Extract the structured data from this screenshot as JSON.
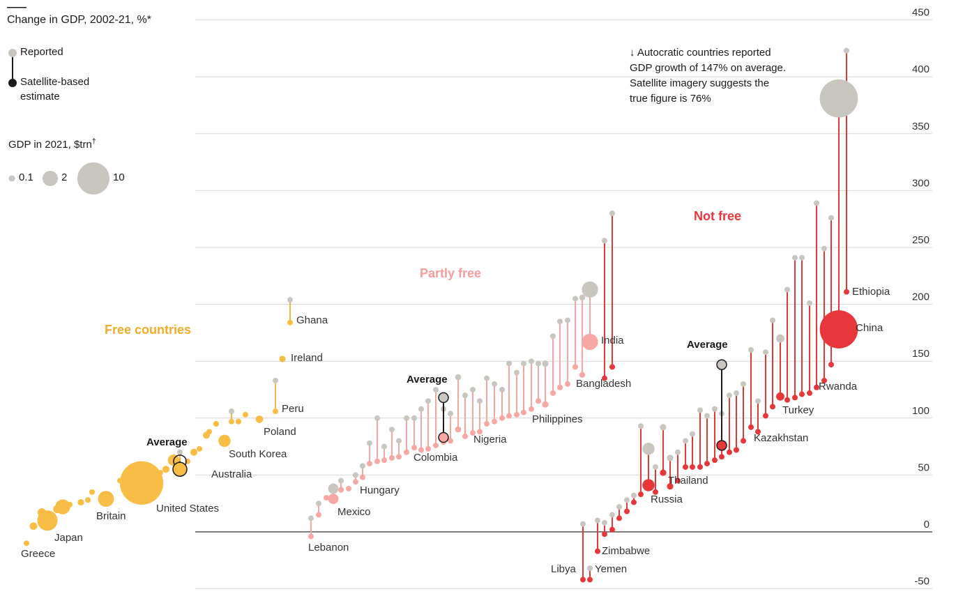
{
  "colors": {
    "free": "#f7bd45",
    "free_line": "#f0b24a",
    "partly": "#f8a8a4",
    "partly_line": "#f3a6a2",
    "notfree": "#e8373a",
    "notfree_line": "#df3a36",
    "reported": "#c9c5bf",
    "estimate_dark": "#1c1c1c",
    "grid": "#d6d6d6",
    "zero": "#555555"
  },
  "chart_data": {
    "type": "scatter",
    "title": "Change in GDP, 2002-21, %*",
    "legend": {
      "reported": "Reported",
      "estimate": "Satellite-based estimate",
      "estimate_line1": "Satellite-based",
      "estimate_line2": "estimate",
      "size_title": "GDP in 2021, $trn",
      "size_title_mark": "†",
      "sizes": [
        "0.1",
        "2",
        "10"
      ]
    },
    "y_axis": {
      "min": -50,
      "max": 450,
      "ticks": [
        "450",
        "400",
        "350",
        "300",
        "250",
        "200",
        "150",
        "100",
        "50",
        "0",
        "-50"
      ]
    },
    "groups": [
      {
        "name": "Free countries",
        "key": "free"
      },
      {
        "name": "Partly free",
        "key": "partly"
      },
      {
        "name": "Not free",
        "key": "notfree"
      }
    ],
    "averages_label": "Average",
    "averages": [
      {
        "group": "free",
        "reported": 62,
        "estimate": 55
      },
      {
        "group": "partly",
        "reported": 118,
        "estimate": 83
      },
      {
        "group": "notfree",
        "reported": 147,
        "estimate": 76
      }
    ],
    "annotation": {
      "lines": [
        "↓ Autocratic countries reported",
        "GDP growth of 147% on average.",
        "Satellite imagery suggests the",
        "true figure is 76%"
      ]
    },
    "labeled_countries": [
      {
        "name": "Greece",
        "group": "free",
        "reported": -10,
        "estimate": -10,
        "gdp": 0.2
      },
      {
        "name": "Japan",
        "group": "free",
        "reported": 10,
        "estimate": 10,
        "gdp": 5
      },
      {
        "name": "Britain",
        "group": "free",
        "reported": 29,
        "estimate": 29,
        "gdp": 3.1
      },
      {
        "name": "United States",
        "group": "free",
        "reported": 43,
        "estimate": 43,
        "gdp": 23
      },
      {
        "name": "Australia",
        "group": "free",
        "reported": 63,
        "estimate": 63,
        "gdp": 1.6
      },
      {
        "name": "South Korea",
        "group": "free",
        "reported": 80,
        "estimate": 80,
        "gdp": 1.8
      },
      {
        "name": "Poland",
        "group": "free",
        "reported": 99,
        "estimate": 99,
        "gdp": 0.68
      },
      {
        "name": "Peru",
        "group": "free",
        "reported": 133,
        "estimate": 106,
        "gdp": 0.22
      },
      {
        "name": "Ireland",
        "group": "free",
        "reported": 152,
        "estimate": 152,
        "gdp": 0.5
      },
      {
        "name": "Ghana",
        "group": "free",
        "reported": 204,
        "estimate": 184,
        "gdp": 0.08
      },
      {
        "name": "Lebanon",
        "group": "partly",
        "reported": 12,
        "estimate": -4,
        "gdp": 0.02
      },
      {
        "name": "Mexico",
        "group": "partly",
        "reported": 38,
        "estimate": 29,
        "gdp": 1.3
      },
      {
        "name": "Hungary",
        "group": "partly",
        "reported": 50,
        "estimate": 44,
        "gdp": 0.18
      },
      {
        "name": "Colombia",
        "group": "partly",
        "reported": 100,
        "estimate": 74,
        "gdp": 0.31
      },
      {
        "name": "Nigeria",
        "group": "partly",
        "reported": 136,
        "estimate": 90,
        "gdp": 0.44
      },
      {
        "name": "Philippines",
        "group": "partly",
        "reported": 148,
        "estimate": 115,
        "gdp": 0.39
      },
      {
        "name": "Bangladesh",
        "group": "partly",
        "reported": 206,
        "estimate": 138,
        "gdp": 0.42
      },
      {
        "name": "India",
        "group": "partly",
        "reported": 213,
        "estimate": 167,
        "gdp": 3.2
      },
      {
        "name": "Libya",
        "group": "notfree",
        "reported": 7,
        "estimate": -42,
        "gdp": 0.04
      },
      {
        "name": "Yemen",
        "group": "notfree",
        "reported": -32,
        "estimate": -42,
        "gdp": 0.02
      },
      {
        "name": "Zimbabwe",
        "group": "notfree",
        "reported": 10,
        "estimate": -17,
        "gdp": 0.02
      },
      {
        "name": "Russia",
        "group": "notfree",
        "reported": 73,
        "estimate": 41,
        "gdp": 1.8
      },
      {
        "name": "Thailand",
        "group": "notfree",
        "reported": 92,
        "estimate": 52,
        "gdp": 0.5
      },
      {
        "name": "Kazakhstan",
        "group": "notfree",
        "reported": 160,
        "estimate": 92,
        "gdp": 0.2
      },
      {
        "name": "Turkey",
        "group": "notfree",
        "reported": 170,
        "estimate": 119,
        "gdp": 0.82
      },
      {
        "name": "Rwanda",
        "group": "notfree",
        "reported": 276,
        "estimate": 147,
        "gdp": 0.01
      },
      {
        "name": "China",
        "group": "notfree",
        "reported": 381,
        "estimate": 178,
        "gdp": 17.7
      },
      {
        "name": "Ethiopia",
        "group": "notfree",
        "reported": 423,
        "estimate": 211,
        "gdp": 0.11
      }
    ],
    "other_countries": {
      "free": [
        {
          "r": 5,
          "e": 5,
          "g": 0.7
        },
        {
          "r": 17,
          "e": 17,
          "g": 0.9
        },
        {
          "r": 20,
          "e": 20,
          "g": 0.8
        },
        {
          "r": 22,
          "e": 22,
          "g": 2.7
        },
        {
          "r": 24,
          "e": 24,
          "g": 0.3
        },
        {
          "r": 26,
          "e": 26,
          "g": 0.5
        },
        {
          "r": 28,
          "e": 28,
          "g": 0.4
        },
        {
          "r": 35,
          "e": 35,
          "g": 0.3
        },
        {
          "r": 45,
          "e": 45,
          "g": 0.1
        },
        {
          "r": 50,
          "e": 50,
          "g": 0.3
        },
        {
          "r": 52,
          "e": 52,
          "g": 0.3
        },
        {
          "r": 55,
          "e": 55,
          "g": 0.6
        },
        {
          "r": 70,
          "e": 58,
          "g": 0.3
        },
        {
          "r": 62,
          "e": 62,
          "g": 0.35
        },
        {
          "r": 70,
          "e": 70,
          "g": 0.6
        },
        {
          "r": 73,
          "e": 73,
          "g": 0.12
        },
        {
          "r": 85,
          "e": 85,
          "g": 0.6
        },
        {
          "r": 95,
          "e": 95,
          "g": 0.4
        },
        {
          "r": 88,
          "e": 88,
          "g": 0.05
        },
        {
          "r": 106,
          "e": 97,
          "g": 0.3
        },
        {
          "r": 97,
          "e": 97,
          "g": 0.4
        },
        {
          "r": 103,
          "e": 103,
          "g": 0.08
        }
      ],
      "partly": [
        {
          "r": 25,
          "e": 15,
          "g": 0.05
        },
        {
          "r": 30,
          "e": 30,
          "g": 0.05
        },
        {
          "r": 38,
          "e": 38,
          "g": 0.08
        },
        {
          "r": 45,
          "e": 37,
          "g": 0.05
        },
        {
          "r": 58,
          "e": 48,
          "g": 0.05
        },
        {
          "r": 78,
          "e": 60,
          "g": 0.05
        },
        {
          "r": 75,
          "e": 63,
          "g": 0.05
        },
        {
          "r": 80,
          "e": 66,
          "g": 0.05
        },
        {
          "r": 100,
          "e": 62,
          "g": 0.08
        },
        {
          "r": 90,
          "e": 65,
          "g": 0.08
        },
        {
          "r": 100,
          "e": 70,
          "g": 0.08
        },
        {
          "r": 108,
          "e": 72,
          "g": 0.05
        },
        {
          "r": 115,
          "e": 73,
          "g": 0.08
        },
        {
          "r": 125,
          "e": 76,
          "g": 0.05
        },
        {
          "r": 108,
          "e": 79,
          "g": 0.08
        },
        {
          "r": 104,
          "e": 80,
          "g": 0.08
        },
        {
          "r": 120,
          "e": 84,
          "g": 0.05
        },
        {
          "r": 125,
          "e": 87,
          "g": 0.3
        },
        {
          "r": 115,
          "e": 88,
          "g": 0.08
        },
        {
          "r": 135,
          "e": 95,
          "g": 0.3
        },
        {
          "r": 130,
          "e": 97,
          "g": 0.08
        },
        {
          "r": 125,
          "e": 100,
          "g": 0.05
        },
        {
          "r": 148,
          "e": 102,
          "g": 0.05
        },
        {
          "r": 140,
          "e": 103,
          "g": 0.05
        },
        {
          "r": 148,
          "e": 105,
          "g": 0.08
        },
        {
          "r": 150,
          "e": 108,
          "g": 0.3
        },
        {
          "r": 148,
          "e": 112,
          "g": 0.5
        },
        {
          "r": 172,
          "e": 122,
          "g": 0.05
        },
        {
          "r": 185,
          "e": 127,
          "g": 0.05
        },
        {
          "r": 186,
          "e": 130,
          "g": 0.05
        },
        {
          "r": 205,
          "e": 145,
          "g": 0.05
        }
      ],
      "notfree": [
        {
          "r": 8,
          "e": -2,
          "g": 0.03
        },
        {
          "r": 15,
          "e": 2,
          "g": 0.03
        },
        {
          "r": 22,
          "e": 12,
          "g": 0.03
        },
        {
          "r": 28,
          "e": 18,
          "g": 0.03
        },
        {
          "r": 32,
          "e": 26,
          "g": 0.03
        },
        {
          "r": 93,
          "e": 33,
          "g": 0.1
        },
        {
          "r": 57,
          "e": 35,
          "g": 0.03
        },
        {
          "r": 65,
          "e": 40,
          "g": 0.5
        },
        {
          "r": 70,
          "e": 45,
          "g": 0.3
        },
        {
          "r": 80,
          "e": 57,
          "g": 0.3
        },
        {
          "r": 86,
          "e": 57,
          "g": 0.05
        },
        {
          "r": 107,
          "e": 57,
          "g": 0.05
        },
        {
          "r": 102,
          "e": 60,
          "g": 0.05
        },
        {
          "r": 108,
          "e": 63,
          "g": 0.05
        },
        {
          "r": 104,
          "e": 66,
          "g": 0.05
        },
        {
          "r": 120,
          "e": 70,
          "g": 0.05
        },
        {
          "r": 122,
          "e": 72,
          "g": 0.3
        },
        {
          "r": 130,
          "e": 80,
          "g": 0.03
        },
        {
          "r": 115,
          "e": 88,
          "g": 0.05
        },
        {
          "r": 158,
          "e": 102,
          "g": 0.05
        },
        {
          "r": 186,
          "e": 110,
          "g": 0.05
        },
        {
          "r": 213,
          "e": 116,
          "g": 0.3
        },
        {
          "r": 241,
          "e": 118,
          "g": 0.05
        },
        {
          "r": 241,
          "e": 121,
          "g": 0.05
        },
        {
          "r": 201,
          "e": 122,
          "g": 0.05
        },
        {
          "r": 289,
          "e": 127,
          "g": 0.05
        },
        {
          "r": 249,
          "e": 133,
          "g": 0.05
        },
        {
          "r": 256,
          "e": 135,
          "g": 0.05
        },
        {
          "r": 280,
          "e": 145,
          "g": 0.05
        }
      ]
    }
  }
}
